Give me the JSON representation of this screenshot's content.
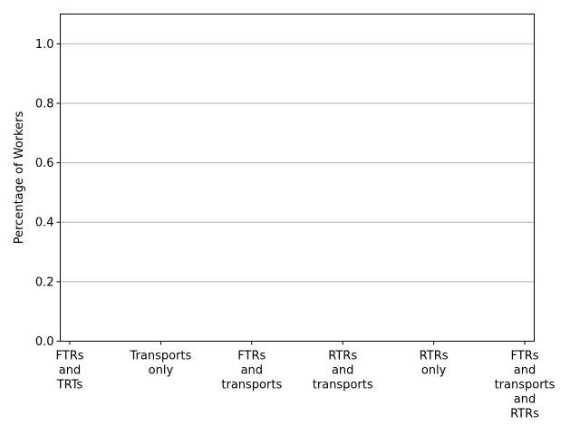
{
  "chart_data": {
    "type": "bar",
    "title": "",
    "xlabel": "",
    "ylabel": "Percentage of Workers",
    "ylim": [
      0,
      1.1
    ],
    "yticks": [
      0.0,
      0.2,
      0.4,
      0.6,
      0.8,
      1.0
    ],
    "ytick_labels": [
      "0.0",
      "0.2",
      "0.4",
      "0.6",
      "0.8",
      "1.0"
    ],
    "grid": "horizontal",
    "categories": [
      "FTRs\nand\nTRTs",
      "Transports\nonly",
      "FTRs\nand\ntransports",
      "RTRs\nand\ntransports",
      "RTRs\nonly",
      "FTRs\nand\ntransports\nand\nRTRs"
    ],
    "values": [
      0,
      0,
      0,
      0,
      0,
      0
    ],
    "colors": {
      "grid": "#b0b0b0",
      "axis": "#000000",
      "bar": "#1f77b4"
    }
  }
}
